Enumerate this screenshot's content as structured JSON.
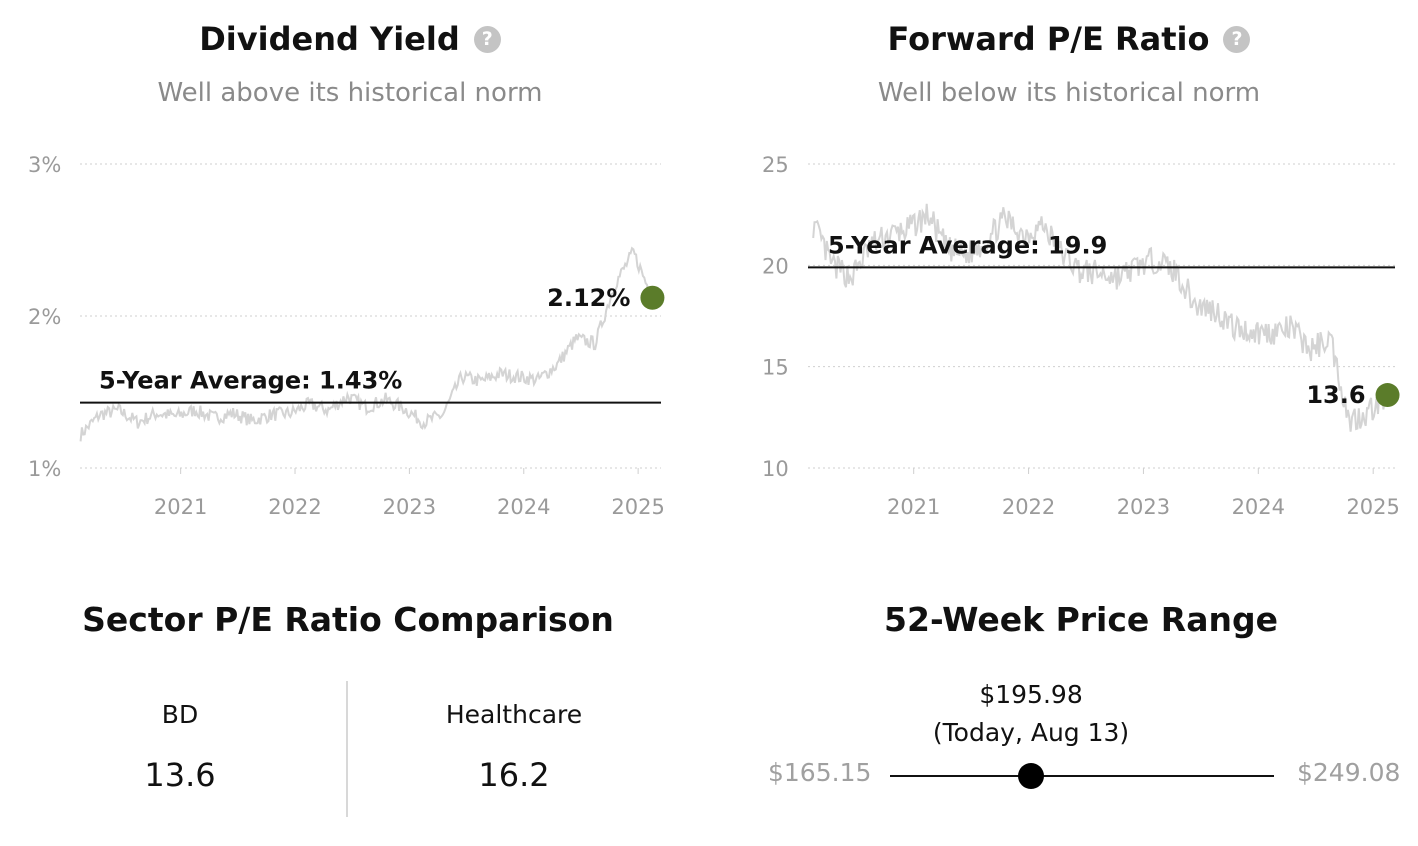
{
  "colors": {
    "accent": "#5b7c2a",
    "history_line": "#d4d4d4",
    "grid": "#cfcfcf",
    "axis_text": "#9a9a9a"
  },
  "dividend_yield": {
    "title": "Dividend Yield",
    "help_icon": "question-circle-icon",
    "subtitle": "Well above its historical norm",
    "average_label": "5-Year Average: 1.43%",
    "current_label": "2.12%"
  },
  "forward_pe": {
    "title": "Forward P/E Ratio",
    "help_icon": "question-circle-icon",
    "subtitle": "Well below its historical norm",
    "average_label": "5-Year Average: 19.9",
    "current_label": "13.6"
  },
  "sector_comparison": {
    "title": "Sector P/E Ratio Comparison",
    "company": {
      "label": "BD",
      "value": "13.6"
    },
    "sector": {
      "label": "Healthcare",
      "value": "16.2"
    }
  },
  "price_range": {
    "title": "52-Week Price Range",
    "low": "$165.15",
    "high": "$249.08",
    "current": "$195.98",
    "current_note": "(Today, Aug 13)",
    "current_value": 195.98,
    "low_value": 165.15,
    "high_value": 249.08
  },
  "chart_data": [
    {
      "type": "line",
      "series": [
        {
          "x": [
            "2020-08",
            "2020-10",
            "2020-12",
            "2021-02",
            "2021-04",
            "2021-06",
            "2021-08",
            "2021-10",
            "2021-12",
            "2022-02",
            "2022-04",
            "2022-06",
            "2022-08",
            "2022-10",
            "2022-12",
            "2023-02",
            "2023-04",
            "2023-06",
            "2023-08",
            "2023-10",
            "2023-12",
            "2024-02",
            "2024-04",
            "2024-06",
            "2024-08",
            "2024-10",
            "2024-12",
            "2025-02",
            "2025-04",
            "2025-06",
            "2025-08"
          ],
          "y": [
            1.22,
            1.35,
            1.38,
            1.3,
            1.36,
            1.34,
            1.38,
            1.33,
            1.36,
            1.31,
            1.35,
            1.36,
            1.42,
            1.38,
            1.47,
            1.4,
            1.45,
            1.39,
            1.3,
            1.35,
            1.6,
            1.57,
            1.62,
            1.6,
            1.58,
            1.68,
            1.85,
            1.82,
            2.2,
            2.42,
            2.12
          ]
        }
      ],
      "x_ticks": [
        "2021",
        "2022",
        "2023",
        "2024",
        "2025"
      ],
      "y_ticks": [
        "3%",
        "2%",
        "1%"
      ],
      "ylim": [
        1,
        3
      ],
      "average": 1.43,
      "current": {
        "x": "2025-08",
        "y": 2.12
      },
      "grid": true
    },
    {
      "type": "line",
      "series": [
        {
          "x": [
            "2020-08",
            "2020-10",
            "2020-12",
            "2021-02",
            "2021-04",
            "2021-06",
            "2021-08",
            "2021-10",
            "2021-12",
            "2022-02",
            "2022-04",
            "2022-06",
            "2022-08",
            "2022-10",
            "2022-12",
            "2023-02",
            "2023-04",
            "2023-06",
            "2023-08",
            "2023-10",
            "2023-12",
            "2024-02",
            "2024-04",
            "2024-06",
            "2024-08",
            "2024-10",
            "2024-12",
            "2025-02",
            "2025-04",
            "2025-06",
            "2025-08"
          ],
          "y": [
            22.0,
            20.0,
            19.4,
            21.0,
            21.5,
            21.8,
            22.5,
            20.8,
            20.5,
            21.2,
            22.3,
            21.5,
            22.0,
            20.6,
            19.7,
            19.6,
            19.4,
            20.0,
            20.3,
            19.6,
            18.0,
            17.8,
            16.9,
            16.7,
            16.7,
            16.9,
            15.8,
            16.5,
            12.3,
            12.8,
            13.6
          ]
        }
      ],
      "x_ticks": [
        "2021",
        "2022",
        "2023",
        "2024",
        "2025"
      ],
      "y_ticks": [
        "25",
        "20",
        "15",
        "10"
      ],
      "ylim": [
        10,
        25
      ],
      "average": 19.9,
      "current": {
        "x": "2025-08",
        "y": 13.6
      },
      "grid": true
    }
  ]
}
